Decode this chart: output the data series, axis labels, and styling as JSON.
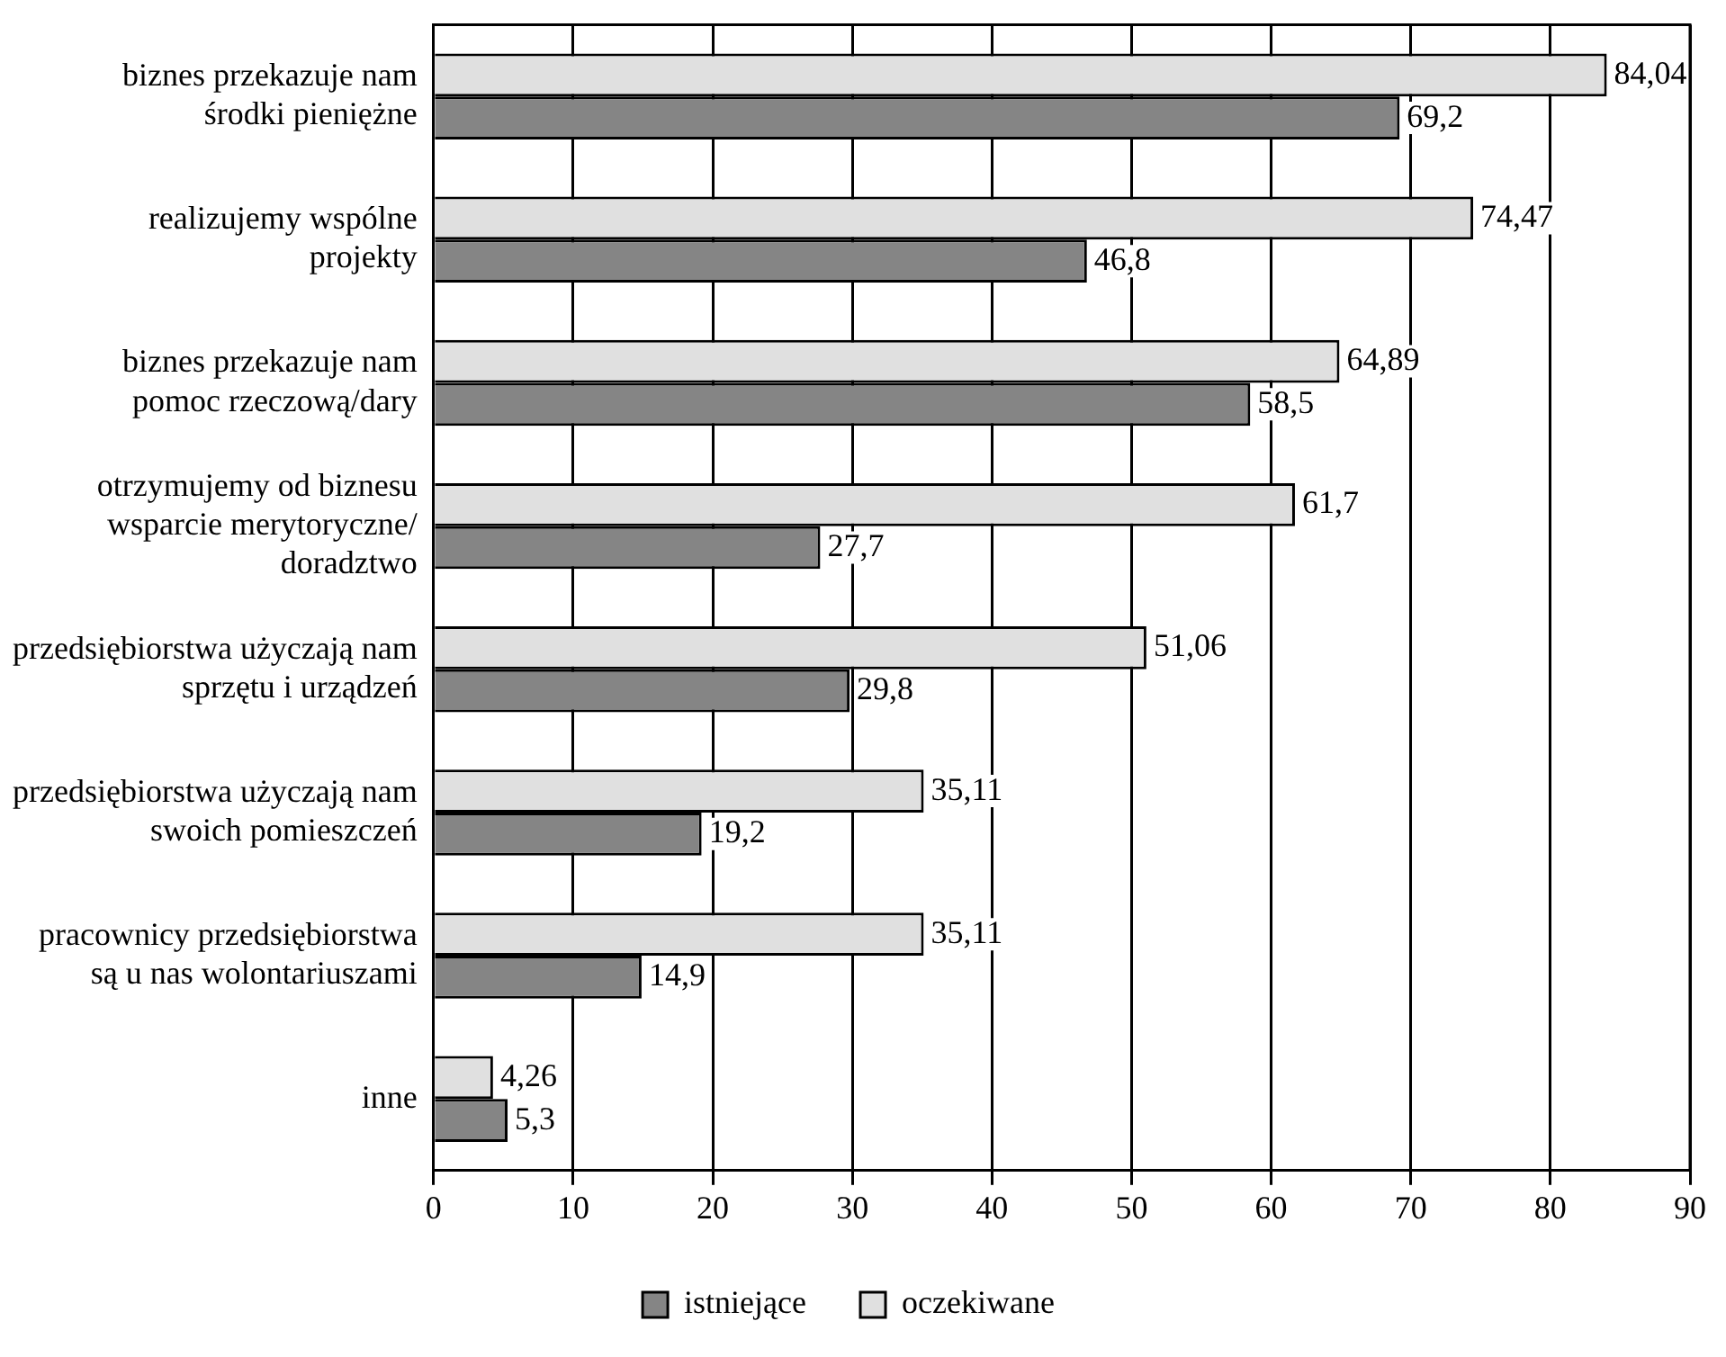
{
  "chart_data": {
    "type": "bar",
    "orientation": "horizontal",
    "categories": [
      "biznes przekazuje nam\nśrodki pieniężne",
      "realizujemy wspólne\nprojekty",
      "biznes przekazuje nam\npomoc rzeczową/dary",
      "otrzymujemy od biznesu\nwsparcie merytoryczne/\ndoradztwo",
      "przedsiębiorstwa użyczają nam\nsprzętu i urządzeń",
      "przedsiębiorstwa użyczają nam\nswoich pomieszczeń",
      "pracownicy przedsiębiorstwa\nsą u nas wolontariuszami",
      "inne"
    ],
    "series": [
      {
        "name": "oczekiwane",
        "color": "#e0e0e0",
        "values": [
          84.04,
          74.47,
          64.89,
          61.7,
          51.06,
          35.11,
          35.11,
          4.26
        ],
        "value_labels": [
          "84,04",
          "74,47",
          "64,89",
          "61,7",
          "51,06",
          "35,11",
          "35,11",
          "4,26"
        ]
      },
      {
        "name": "istniejące",
        "color": "#858585",
        "values": [
          69.2,
          46.8,
          58.5,
          27.7,
          29.8,
          19.2,
          14.9,
          5.3
        ],
        "value_labels": [
          "69,2",
          "46,8",
          "58,5",
          "27,7",
          "29,8",
          "19,2",
          "14,9",
          "5,3"
        ]
      }
    ],
    "xlim": [
      0,
      90
    ],
    "xticks": [
      0,
      10,
      20,
      30,
      40,
      50,
      60,
      70,
      80,
      90
    ],
    "grid": "x",
    "legend": "bottom"
  }
}
